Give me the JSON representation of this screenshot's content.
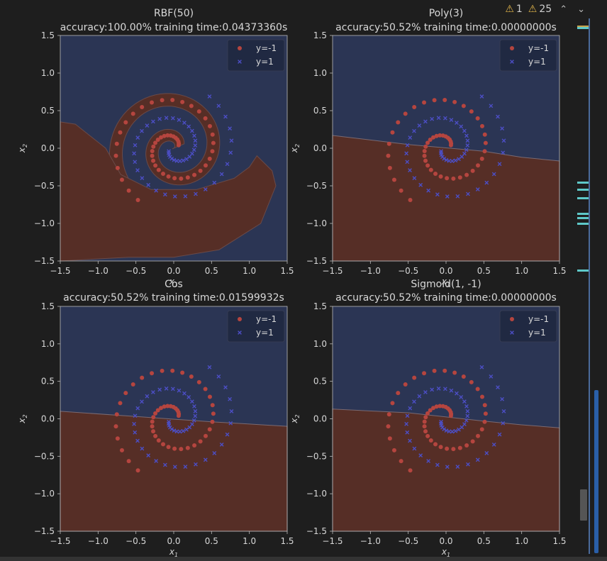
{
  "topbar": {
    "info_count": "1",
    "warn_count": "25",
    "up_glyph": "⌃",
    "down_glyph": "⌄"
  },
  "colors": {
    "neg_region": "#562e26",
    "pos_region": "#2b3554",
    "neg_point": "#b5453f",
    "pos_point": "#4c4ec4",
    "bg": "#1e1e1e",
    "mark_yellow": "#c9a24a",
    "mark_cyan": "#5ec8c8"
  },
  "gutter_marks": [
    {
      "color": "yellow"
    },
    {
      "color": "cyan"
    },
    {
      "color": "cyan"
    },
    {
      "color": "cyan"
    },
    {
      "color": "cyan"
    },
    {
      "color": "cyan"
    },
    {
      "color": "cyan"
    },
    {
      "color": "cyan"
    },
    {
      "color": "cyan"
    }
  ],
  "chart_data": [
    {
      "type": "scatter",
      "title": "RBF(50)",
      "subtitle": "accuracy:100.00%  training time:0.04373360s",
      "xlabel": "x1",
      "ylabel": "x2",
      "xlim": [
        -1.5,
        1.5
      ],
      "ylim": [
        -1.5,
        1.5
      ],
      "xticks": [
        "−1.5",
        "−1.0",
        "−0.5",
        "0.0",
        "0.5",
        "1.0",
        "1.5"
      ],
      "yticks": [
        "−1.5",
        "−1.0",
        "−0.5",
        "0.0",
        "0.5",
        "1.0",
        "1.5"
      ],
      "legend": {
        "position": "top-right",
        "entries": [
          "y=-1",
          "y=1"
        ]
      },
      "boundary": "rbf",
      "series": [
        {
          "name": "y=-1",
          "marker": "o"
        },
        {
          "name": "y=1",
          "marker": "x"
        }
      ]
    },
    {
      "type": "scatter",
      "title": "Poly(3)",
      "subtitle": "accuracy:50.52%  training time:0.00000000s",
      "xlabel": "x1",
      "ylabel": "x2",
      "xlim": [
        -1.5,
        1.5
      ],
      "ylim": [
        -1.5,
        1.5
      ],
      "xticks": [
        "−1.5",
        "−1.0",
        "−0.5",
        "0.0",
        "0.5",
        "1.0",
        "1.5"
      ],
      "yticks": [
        "−1.5",
        "−1.0",
        "−0.5",
        "0.0",
        "0.5",
        "1.0",
        "1.5"
      ],
      "legend": {
        "position": "top-right",
        "entries": [
          "y=-1",
          "y=1"
        ]
      },
      "boundary": [
        [
          -1.5,
          0.17
        ],
        [
          -0.5,
          0.05
        ],
        [
          0.5,
          -0.04
        ],
        [
          1.0,
          -0.12
        ],
        [
          1.5,
          -0.17
        ]
      ],
      "series": [
        {
          "name": "y=-1",
          "marker": "o"
        },
        {
          "name": "y=1",
          "marker": "x"
        }
      ]
    },
    {
      "type": "scatter",
      "title": "Cos",
      "subtitle": "accuracy:50.52%  training time:0.01599932s",
      "xlabel": "x1",
      "ylabel": "x2",
      "xlim": [
        -1.5,
        1.5
      ],
      "ylim": [
        -1.5,
        1.5
      ],
      "xticks": [
        "−1.5",
        "−1.0",
        "−0.5",
        "0.0",
        "0.5",
        "1.0",
        "1.5"
      ],
      "yticks": [
        "−1.5",
        "−1.0",
        "−0.5",
        "0.0",
        "0.5",
        "1.0",
        "1.5"
      ],
      "legend": {
        "position": "top-right",
        "entries": [
          "y=-1",
          "y=1"
        ]
      },
      "boundary": [
        [
          -1.5,
          0.1
        ],
        [
          -0.5,
          0.03
        ],
        [
          0.5,
          -0.04
        ],
        [
          1.0,
          -0.07
        ],
        [
          1.5,
          -0.1
        ]
      ],
      "series": [
        {
          "name": "y=-1",
          "marker": "o"
        },
        {
          "name": "y=1",
          "marker": "x"
        }
      ]
    },
    {
      "type": "scatter",
      "title": "Sigmoid(1, -1)",
      "subtitle": "accuracy:50.52%  training time:0.00000000s",
      "xlabel": "x1",
      "ylabel": "x2",
      "xlim": [
        -1.5,
        1.5
      ],
      "ylim": [
        -1.5,
        1.5
      ],
      "xticks": [
        "−1.5",
        "−1.0",
        "−0.5",
        "0.0",
        "0.5",
        "1.0",
        "1.5"
      ],
      "yticks": [
        "−1.5",
        "−1.0",
        "−0.5",
        "0.0",
        "0.5",
        "1.0",
        "1.5"
      ],
      "legend": {
        "position": "top-right",
        "entries": [
          "y=-1",
          "y=1"
        ]
      },
      "boundary": [
        [
          -1.5,
          0.13
        ],
        [
          -0.5,
          0.08
        ],
        [
          0.5,
          -0.03
        ],
        [
          1.0,
          -0.08
        ],
        [
          1.5,
          -0.12
        ]
      ],
      "series": [
        {
          "name": "y=-1",
          "marker": "o"
        },
        {
          "name": "y=1",
          "marker": "x"
        }
      ]
    }
  ]
}
